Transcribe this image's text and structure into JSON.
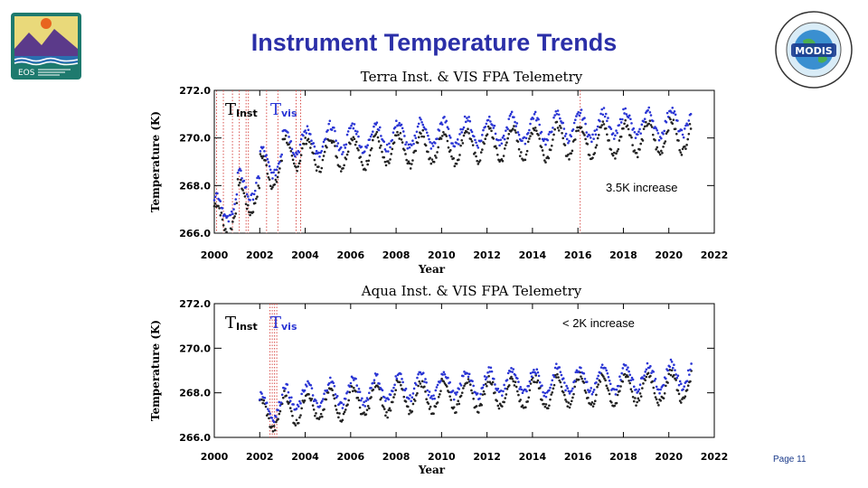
{
  "slide": {
    "title": "Instrument Temperature Trends",
    "page": "Page 11",
    "left_logo_text": "EOS",
    "right_logo_text": "MODIS"
  },
  "colors": {
    "title": "#2b2fa8",
    "inst": "#222222",
    "vis": "#2a35d4",
    "event_lines": "#d9534f"
  },
  "chart_data": [
    {
      "type": "scatter",
      "title": "Terra Inst. & VIS FPA Telemetry",
      "xlabel": "Year",
      "ylabel": "Temperature (K)",
      "xlim": [
        2000,
        2022
      ],
      "ylim": [
        266.0,
        272.0
      ],
      "xticks": [
        "2000",
        "2002",
        "2004",
        "2006",
        "2008",
        "2010",
        "2012",
        "2014",
        "2016",
        "2018",
        "2020",
        "2022"
      ],
      "yticks": [
        "266.0",
        "268.0",
        "270.0",
        "272.0"
      ],
      "legend": {
        "inst_main": "T",
        "inst_sub": "Inst",
        "vis_main": "T",
        "vis_sub": "vis",
        "placement": "top-left"
      },
      "annotation": "3.5K increase",
      "event_years": [
        2000.1,
        2000.4,
        2000.8,
        2001.1,
        2001.4,
        2001.5,
        2002.3,
        2002.8,
        2003.6,
        2003.8,
        2016.1
      ],
      "series": [
        {
          "key": "inst",
          "values_by_year": {
            "2000.5": 266.6,
            "2001.5": 267.5,
            "2002.5": 268.6,
            "2003.5": 269.4,
            "2004.5": 269.3,
            "2005.5": 269.4,
            "2006.5": 269.4,
            "2007.5": 269.5,
            "2008.5": 269.5,
            "2009.5": 269.6,
            "2010.5": 269.6,
            "2011.5": 269.7,
            "2012.5": 269.7,
            "2013.5": 269.8,
            "2014.5": 269.8,
            "2015.5": 269.9,
            "2016.5": 269.9,
            "2017.5": 269.9,
            "2018.5": 270.0,
            "2019.5": 270.0,
            "2020.5": 270.1
          }
        },
        {
          "key": "vis",
          "values_by_year": {
            "2000.5": 267.1,
            "2001.5": 268.0,
            "2002.5": 269.0,
            "2003.5": 269.9,
            "2004.5": 269.8,
            "2005.5": 270.0,
            "2006.5": 270.0,
            "2007.5": 270.1,
            "2008.5": 270.1,
            "2009.5": 270.2,
            "2010.5": 270.2,
            "2011.5": 270.3,
            "2012.5": 270.3,
            "2013.5": 270.4,
            "2014.5": 270.4,
            "2015.5": 270.5,
            "2016.5": 270.5,
            "2017.5": 270.6,
            "2018.5": 270.6,
            "2019.5": 270.6,
            "2020.5": 270.7
          }
        }
      ]
    },
    {
      "type": "scatter",
      "title": "Aqua Inst. & VIS FPA Telemetry",
      "xlabel": "Year",
      "ylabel": "Temperature (K)",
      "xlim": [
        2000,
        2022
      ],
      "ylim": [
        266.0,
        272.0
      ],
      "xticks": [
        "2000",
        "2002",
        "2004",
        "2006",
        "2008",
        "2010",
        "2012",
        "2014",
        "2016",
        "2018",
        "2020",
        "2022"
      ],
      "yticks": [
        "266.0",
        "268.0",
        "270.0",
        "272.0"
      ],
      "legend": {
        "inst_main": "T",
        "inst_sub": "Inst",
        "vis_main": "T",
        "vis_sub": "vis",
        "placement": "top-left"
      },
      "annotation": "< 2K increase",
      "event_years": [
        2002.45,
        2002.55,
        2002.65,
        2002.75
      ],
      "series": [
        {
          "key": "inst",
          "values_by_year": {
            "2002.5": 267.0,
            "2003.5": 267.3,
            "2004.5": 267.4,
            "2005.5": 267.5,
            "2006.5": 267.6,
            "2007.5": 267.7,
            "2008.5": 267.8,
            "2009.5": 267.8,
            "2010.5": 267.9,
            "2011.5": 267.9,
            "2012.5": 268.0,
            "2013.5": 268.0,
            "2014.5": 268.0,
            "2015.5": 268.1,
            "2016.5": 268.1,
            "2017.5": 268.1,
            "2018.5": 268.2,
            "2019.5": 268.2,
            "2020.5": 268.3
          }
        },
        {
          "key": "vis",
          "values_by_year": {
            "2002.5": 267.4,
            "2003.5": 267.8,
            "2004.5": 267.9,
            "2005.5": 268.0,
            "2006.5": 268.1,
            "2007.5": 268.2,
            "2008.5": 268.3,
            "2009.5": 268.3,
            "2010.5": 268.4,
            "2011.5": 268.4,
            "2012.5": 268.5,
            "2013.5": 268.5,
            "2014.5": 268.5,
            "2015.5": 268.6,
            "2016.5": 268.6,
            "2017.5": 268.6,
            "2018.5": 268.7,
            "2019.5": 268.7,
            "2020.5": 268.8
          }
        }
      ]
    }
  ]
}
